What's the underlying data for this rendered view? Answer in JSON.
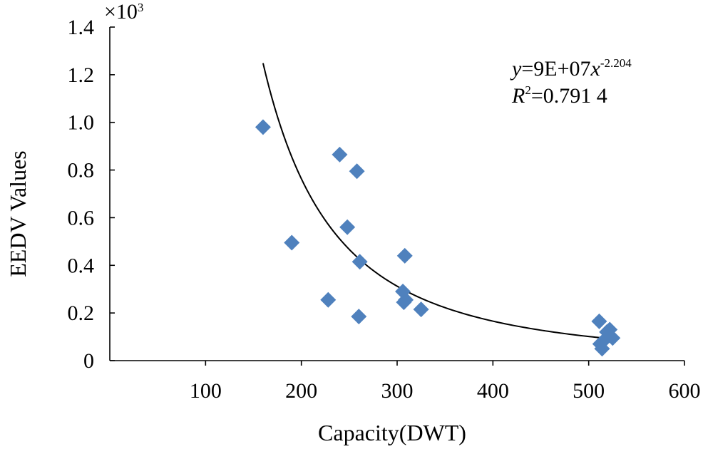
{
  "chart_data": {
    "type": "scatter",
    "title": "",
    "xlabel": "Capacity(DWT)",
    "ylabel": "EEDV Values",
    "y_scale_label": {
      "base": "×10",
      "exponent": "3"
    },
    "xlim": [
      0,
      600
    ],
    "ylim": [
      0,
      1.4
    ],
    "xticks": [
      100,
      200,
      300,
      400,
      500,
      600
    ],
    "xtick_labels": [
      "100",
      "200",
      "300",
      "400",
      "500",
      "600"
    ],
    "yticks": [
      0,
      0.2,
      0.4,
      0.6,
      0.8,
      1.0,
      1.2,
      1.4
    ],
    "ytick_labels": [
      "0",
      "0.2",
      "0.4",
      "0.6",
      "0.8",
      "1.0",
      "1.2",
      "1.4"
    ],
    "grid": false,
    "series": [
      {
        "name": "EEDV",
        "marker": "diamond",
        "color": "#4f81bd",
        "points": [
          {
            "x": 160,
            "y": 0.98
          },
          {
            "x": 190,
            "y": 0.495
          },
          {
            "x": 228,
            "y": 0.255
          },
          {
            "x": 240,
            "y": 0.865
          },
          {
            "x": 248,
            "y": 0.56
          },
          {
            "x": 258,
            "y": 0.795
          },
          {
            "x": 261,
            "y": 0.415
          },
          {
            "x": 260,
            "y": 0.185
          },
          {
            "x": 306,
            "y": 0.29
          },
          {
            "x": 307,
            "y": 0.245
          },
          {
            "x": 309,
            "y": 0.255
          },
          {
            "x": 308,
            "y": 0.44
          },
          {
            "x": 325,
            "y": 0.215
          },
          {
            "x": 511,
            "y": 0.165
          },
          {
            "x": 512,
            "y": 0.07
          },
          {
            "x": 514,
            "y": 0.05
          },
          {
            "x": 516,
            "y": 0.085
          },
          {
            "x": 519,
            "y": 0.12
          },
          {
            "x": 522,
            "y": 0.13
          },
          {
            "x": 525,
            "y": 0.095
          }
        ]
      }
    ],
    "trendline": {
      "type": "power",
      "coefficient_thousands": 90000,
      "exponent": -2.204,
      "x_range": [
        160,
        525
      ],
      "color": "#000000"
    },
    "annotation": {
      "equation": {
        "y": "y",
        "rhs": "=9E+07",
        "x": "x",
        "exp": "-2.204"
      },
      "r2": {
        "r": "R",
        "sup": "2",
        "value": "=0.791 4"
      }
    }
  }
}
